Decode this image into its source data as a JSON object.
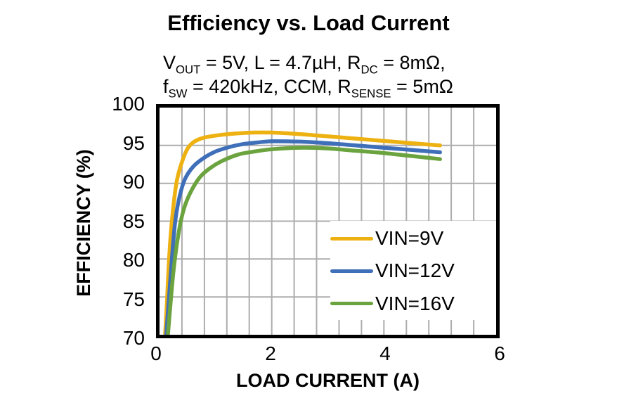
{
  "chart_data": {
    "type": "line",
    "title": "Efficiency vs. Load Current",
    "subtitle_lines": [
      [
        {
          "t": "V"
        },
        {
          "sub": "OUT"
        },
        {
          "t": " = 5V, L = 4.7µH, R"
        },
        {
          "sub": "DC"
        },
        {
          "t": " = 8mΩ,"
        }
      ],
      [
        {
          "t": "f"
        },
        {
          "sub": "SW"
        },
        {
          "t": " = 420kHz, CCM, R"
        },
        {
          "sub": "SENSE"
        },
        {
          "t": " = 5mΩ"
        }
      ]
    ],
    "xlabel": "LOAD CURRENT (A)",
    "ylabel": "EFFICIENCY (%)",
    "xlim": [
      0,
      6
    ],
    "ylim": [
      70,
      100
    ],
    "xticks": [
      0,
      2,
      4,
      6
    ],
    "yticks": [
      100,
      95,
      90,
      85,
      80,
      75,
      70
    ],
    "x_minor_grid_step": 0.4,
    "y_grid_step": 5,
    "grid": true,
    "grid_color": "#ADADAD",
    "axis_color": "#000000",
    "plot_background": "#FFFFFF",
    "legend_position": "inside-right",
    "legend_background": "#FFFFFF",
    "series": [
      {
        "name": "VIN=9V",
        "color": "#EDB111",
        "points": [
          [
            0.1,
            70
          ],
          [
            0.13,
            74
          ],
          [
            0.17,
            80
          ],
          [
            0.22,
            85
          ],
          [
            0.3,
            90
          ],
          [
            0.4,
            92.8
          ],
          [
            0.52,
            94.8
          ],
          [
            0.7,
            95.8
          ],
          [
            1.0,
            96.3
          ],
          [
            1.5,
            96.65
          ],
          [
            2.0,
            96.7
          ],
          [
            2.5,
            96.5
          ],
          [
            3.0,
            96.2
          ],
          [
            3.5,
            95.9
          ],
          [
            4.0,
            95.6
          ],
          [
            4.5,
            95.3
          ],
          [
            5.0,
            95.0
          ]
        ]
      },
      {
        "name": "VIN=12V",
        "color": "#3E6FB8",
        "points": [
          [
            0.12,
            70
          ],
          [
            0.17,
            75
          ],
          [
            0.22,
            80
          ],
          [
            0.28,
            85
          ],
          [
            0.35,
            88
          ],
          [
            0.45,
            90.5
          ],
          [
            0.6,
            92.2
          ],
          [
            0.8,
            93.4
          ],
          [
            1.0,
            94.2
          ],
          [
            1.25,
            94.8
          ],
          [
            1.5,
            95.2
          ],
          [
            1.75,
            95.4
          ],
          [
            2.0,
            95.55
          ],
          [
            2.5,
            95.5
          ],
          [
            3.0,
            95.3
          ],
          [
            3.5,
            95.0
          ],
          [
            4.0,
            94.7
          ],
          [
            4.5,
            94.4
          ],
          [
            5.0,
            94.1
          ]
        ]
      },
      {
        "name": "VIN=16V",
        "color": "#6BA43F",
        "points": [
          [
            0.15,
            70
          ],
          [
            0.2,
            74.5
          ],
          [
            0.25,
            78.5
          ],
          [
            0.31,
            82
          ],
          [
            0.38,
            85
          ],
          [
            0.46,
            87.2
          ],
          [
            0.58,
            89.2
          ],
          [
            0.73,
            90.9
          ],
          [
            0.9,
            92.0
          ],
          [
            1.1,
            92.9
          ],
          [
            1.4,
            93.8
          ],
          [
            1.7,
            94.2
          ],
          [
            2.0,
            94.5
          ],
          [
            2.5,
            94.7
          ],
          [
            3.0,
            94.6
          ],
          [
            3.5,
            94.3
          ],
          [
            4.0,
            94.0
          ],
          [
            4.5,
            93.6
          ],
          [
            5.0,
            93.2
          ]
        ]
      }
    ]
  }
}
